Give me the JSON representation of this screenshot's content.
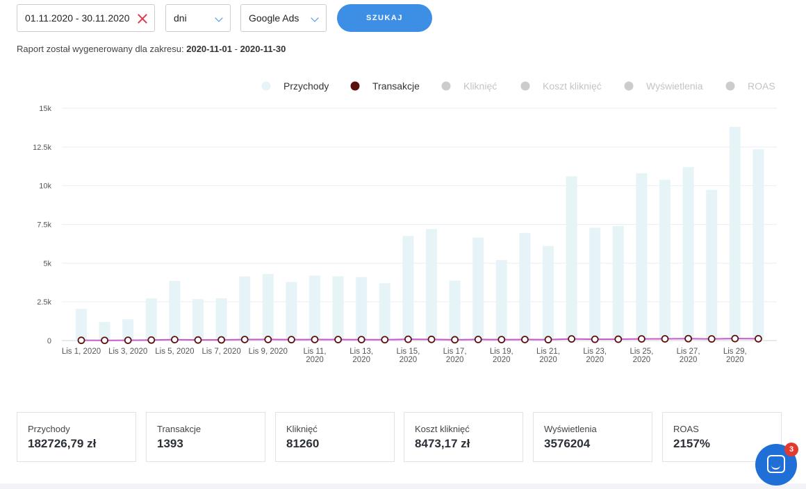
{
  "filters": {
    "date_range": "01.11.2020 - 30.11.2020",
    "granularity": "dni",
    "source": "Google Ads",
    "search_label": "SZUKAJ"
  },
  "report": {
    "prefix": "Raport został wygenerowany dla zakresu: ",
    "from": "2020-11-01",
    "separator": " - ",
    "to": "2020-11-30"
  },
  "chart_data": {
    "type": "bar",
    "title": "",
    "xlabel": "",
    "ylabel": "",
    "ylim": [
      0,
      15000
    ],
    "yticks": [
      0,
      2500,
      5000,
      7500,
      10000,
      12500,
      15000
    ],
    "ytick_labels": [
      "0",
      "2.5k",
      "5k",
      "7.5k",
      "10k",
      "12.5k",
      "15k"
    ],
    "grid": true,
    "legend_position": "top-right",
    "legend": [
      {
        "name": "Przychody",
        "color": "#e6f4f8",
        "active": true
      },
      {
        "name": "Transakcje",
        "color": "#5c0f0f",
        "active": true
      },
      {
        "name": "Kliknięć",
        "color": "#cccccc",
        "active": false
      },
      {
        "name": "Koszt kliknięć",
        "color": "#cccccc",
        "active": false
      },
      {
        "name": "Wyświetlenia",
        "color": "#cccccc",
        "active": false
      },
      {
        "name": "ROAS",
        "color": "#cccccc",
        "active": false
      }
    ],
    "x_tick_labels": [
      [
        "Lis 1, 2020"
      ],
      [
        "Lis 3, 2020"
      ],
      [
        "Lis 5, 2020"
      ],
      [
        "Lis 7, 2020"
      ],
      [
        "Lis 9, 2020"
      ],
      [
        "Lis 11,",
        "2020"
      ],
      [
        "Lis 13,",
        "2020"
      ],
      [
        "Lis 15,",
        "2020"
      ],
      [
        "Lis 17,",
        "2020"
      ],
      [
        "Lis 19,",
        "2020"
      ],
      [
        "Lis 21,",
        "2020"
      ],
      [
        "Lis 23,",
        "2020"
      ],
      [
        "Lis 25,",
        "2020"
      ],
      [
        "Lis 27,",
        "2020"
      ],
      [
        "Lis 29,",
        "2020"
      ]
    ],
    "series": [
      {
        "name": "Przychody",
        "type": "bar",
        "color": "#e6f4f8",
        "values": [
          2050,
          1200,
          1380,
          2720,
          3850,
          2680,
          2730,
          4150,
          4300,
          3780,
          4200,
          4150,
          4100,
          3700,
          6750,
          7200,
          3870,
          6650,
          5200,
          6950,
          6100,
          10600,
          7280,
          7400,
          10800,
          10380,
          11200,
          9730,
          13800,
          12350
        ]
      },
      {
        "name": "Transakcje",
        "type": "line",
        "color": "#c75ac8",
        "marker_color": "#5c0f0f",
        "values": [
          10,
          8,
          12,
          22,
          40,
          25,
          30,
          45,
          48,
          40,
          45,
          44,
          42,
          38,
          55,
          50,
          35,
          48,
          42,
          45,
          40,
          70,
          55,
          58,
          72,
          74,
          82,
          70,
          85,
          78
        ]
      }
    ]
  },
  "stats": [
    {
      "label": "Przychody",
      "value": "182726,79 zł"
    },
    {
      "label": "Transakcje",
      "value": "1393"
    },
    {
      "label": "Kliknięć",
      "value": "81260"
    },
    {
      "label": "Koszt kliknięć",
      "value": "8473,17 zł"
    },
    {
      "label": "Wyświetlenia",
      "value": "3576204"
    },
    {
      "label": "ROAS",
      "value": "2157%"
    }
  ],
  "chat": {
    "badge_count": "3",
    "icon": "chat-icon"
  }
}
